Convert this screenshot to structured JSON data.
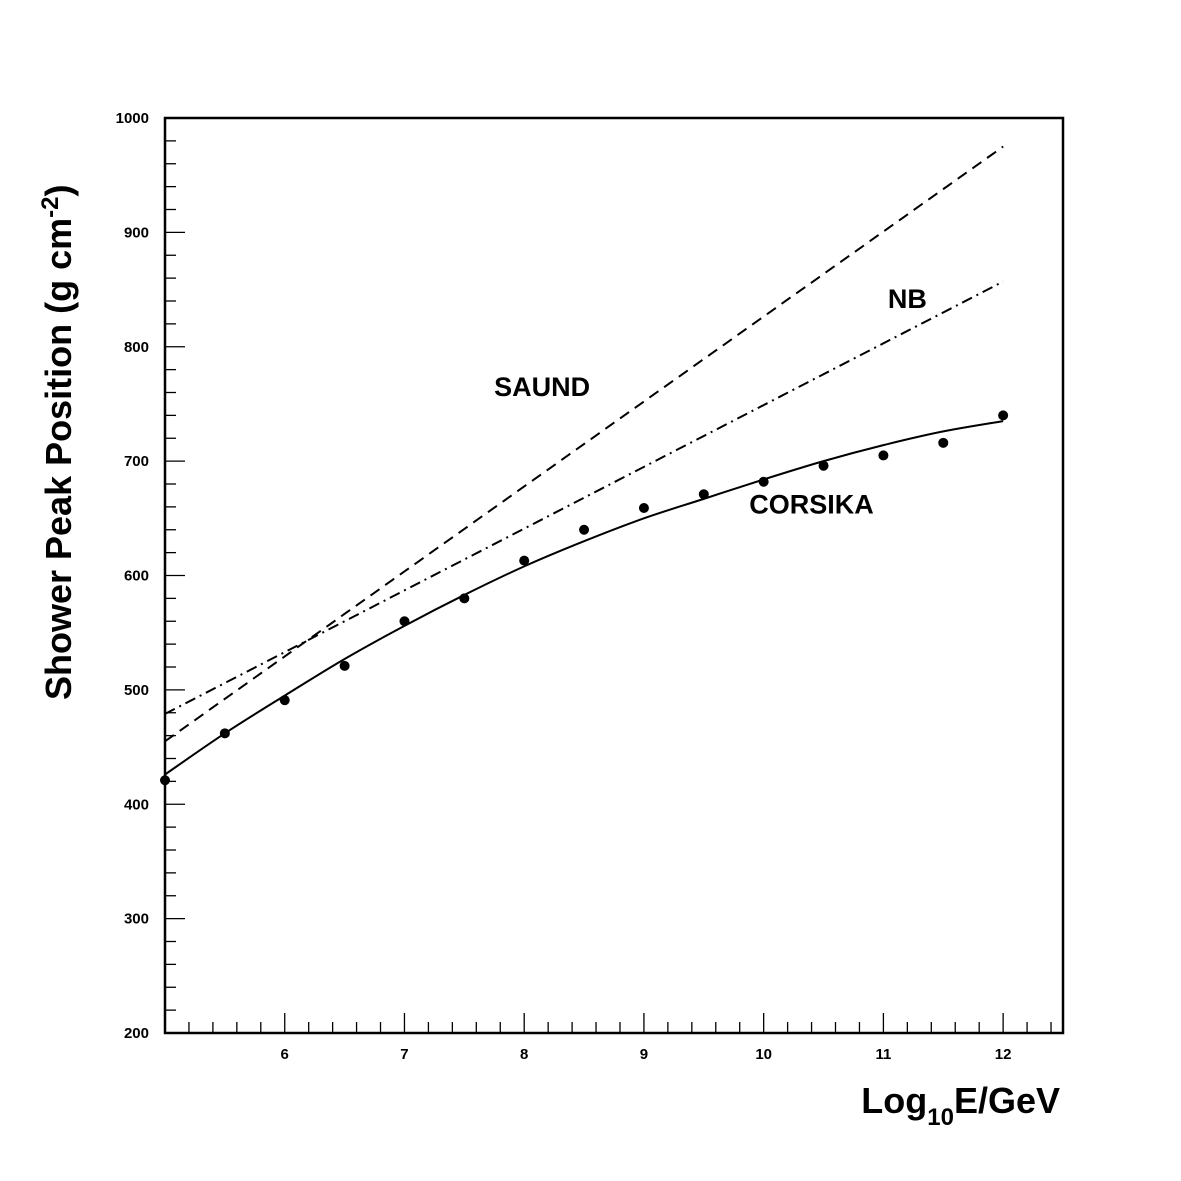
{
  "chart_data": {
    "type": "line",
    "x_axis": {
      "label_main": "Log",
      "label_sub": "10",
      "label_rest": "E/GeV",
      "range": [
        5,
        12.5
      ],
      "ticks": [
        "6",
        "7",
        "8",
        "9",
        "10",
        "11",
        "12"
      ]
    },
    "y_axis": {
      "label_main": "Shower Peak Position (g cm",
      "label_sup": "-2",
      "label_close": ")",
      "range": [
        200,
        1000
      ],
      "ticks": [
        "200",
        "300",
        "400",
        "500",
        "600",
        "700",
        "800",
        "900",
        "1000"
      ]
    },
    "grid": false,
    "series": [
      {
        "name": "SAUND",
        "style": "dashed",
        "x": [
          5,
          12
        ],
        "y": [
          455,
          975
        ]
      },
      {
        "name": "NB",
        "style": "dash-dot",
        "x": [
          5,
          12
        ],
        "y": [
          479,
          857
        ]
      },
      {
        "name": "CORSIKA",
        "style": "solid",
        "x": [
          5,
          5.5,
          6,
          6.5,
          7,
          7.5,
          8,
          8.5,
          9,
          9.5,
          10,
          10.5,
          11,
          11.5,
          12
        ],
        "y": [
          426,
          462,
          495,
          527,
          556,
          583,
          608,
          630,
          650,
          667,
          684,
          700,
          714,
          726,
          735
        ]
      },
      {
        "name": "CORSIKA",
        "style": "points",
        "x": [
          5,
          5.5,
          6,
          6.5,
          7,
          7.5,
          8,
          8.5,
          9,
          9.5,
          10,
          10.5,
          11,
          11.5,
          12
        ],
        "y": [
          421,
          462,
          491,
          521,
          560,
          580,
          613,
          640,
          659,
          671,
          682,
          696,
          705,
          716,
          740
        ]
      }
    ],
    "annotations": [
      {
        "text": "SAUND",
        "x": 8.15,
        "y": 757
      },
      {
        "text": "NB",
        "x": 11.2,
        "y": 834
      },
      {
        "text": "CORSIKA",
        "x": 10.4,
        "y": 654
      }
    ]
  }
}
